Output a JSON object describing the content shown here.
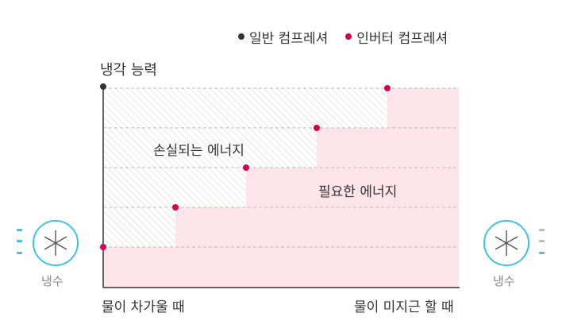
{
  "legend": {
    "general": "일반 컴프레셔",
    "inverter": "인버터 컴프레셔"
  },
  "axis": {
    "y_label": "냉각 능력",
    "x_left": "물이 차가울 때",
    "x_right": "물이 미지근 할 때"
  },
  "areas": {
    "lost": "손실되는 에너지",
    "needed": "필요한 에너지"
  },
  "sides": {
    "left_label": "냉수",
    "right_label": "냉수"
  },
  "colors": {
    "general_dot": "#333333",
    "inverter_dot": "#d4004f",
    "needed_fill": "#fce4ea",
    "hatch": "#cccccc",
    "cool_ring": "#3fc1e8",
    "grid": "#bbbbbb"
  },
  "icons": {
    "cooling": "snowflake-icon"
  }
}
